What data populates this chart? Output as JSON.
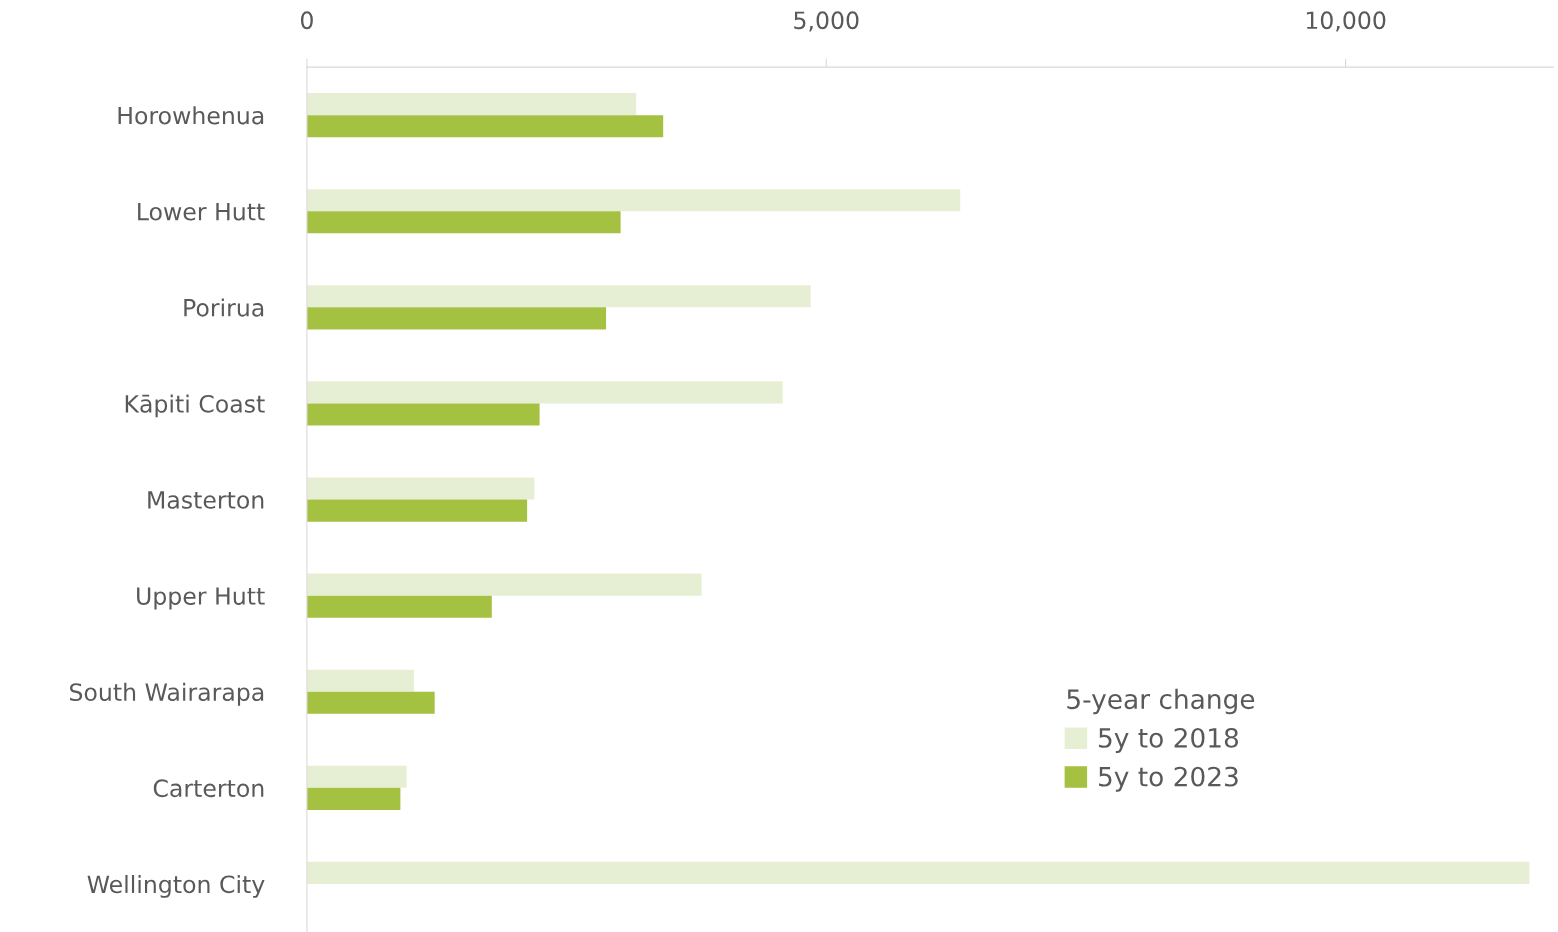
{
  "chart_data": {
    "type": "bar",
    "orientation": "horizontal",
    "categories": [
      "Horowhenua",
      "Lower Hutt",
      "Porirua",
      "Kāpiti Coast",
      "Masterton",
      "Upper Hutt",
      "South Wairarapa",
      "Carterton",
      "Wellington City"
    ],
    "series": [
      {
        "name": "5y to 2018",
        "color": "#e6efd3",
        "values": [
          3170,
          6290,
          4850,
          4580,
          2190,
          3800,
          1030,
          960,
          11770
        ]
      },
      {
        "name": "5y to 2023",
        "color": "#a5c142",
        "values": [
          3430,
          3020,
          2880,
          2240,
          2120,
          1780,
          1230,
          900,
          null
        ]
      }
    ],
    "xlim": [
      0,
      12000
    ],
    "xticks": [
      {
        "value": 0,
        "label": "0"
      },
      {
        "value": 5000,
        "label": "5,000"
      },
      {
        "value": 10000,
        "label": "10,000"
      }
    ],
    "legend_title": "5-year change",
    "legend": "bottom right",
    "grid": false
  }
}
